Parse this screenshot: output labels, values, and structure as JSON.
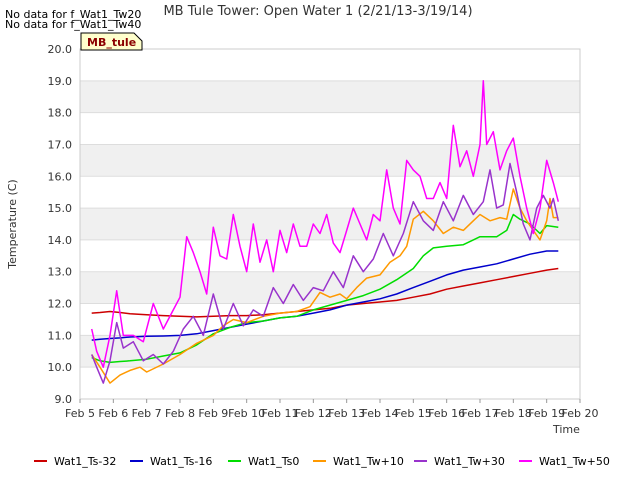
{
  "notes": [
    "No data for f_Wat1_Tw20",
    "No data for f_Wat1_Tw40"
  ],
  "site_tag": "MB_tule",
  "chart_data": {
    "type": "line",
    "title": "MB Tule Tower: Open Water 1 (2/21/13-3/19/14)",
    "xlabel": "Time",
    "ylabel": "Temperature (C)",
    "xlim": [
      5,
      20
    ],
    "ylim": [
      9.0,
      20.0
    ],
    "x_ticks": [
      5,
      6,
      7,
      8,
      9,
      10,
      11,
      12,
      13,
      14,
      15,
      16,
      17,
      18,
      19,
      20
    ],
    "x_tick_labels": [
      "Feb 5",
      "Feb 6",
      "Feb 7",
      "Feb 8",
      "Feb 9",
      "Feb 10",
      "Feb 11",
      "Feb 12",
      "Feb 13",
      "Feb 14",
      "Feb 15",
      "Feb 16",
      "Feb 17",
      "Feb 18",
      "Feb 19",
      "Feb 20"
    ],
    "y_ticks": [
      9.0,
      10.0,
      11.0,
      12.0,
      13.0,
      14.0,
      15.0,
      16.0,
      17.0,
      18.0,
      19.0,
      20.0
    ],
    "y_tick_labels": [
      "9.0",
      "10.0",
      "11.0",
      "12.0",
      "13.0",
      "14.0",
      "15.0",
      "16.0",
      "17.0",
      "18.0",
      "19.0",
      "20.0"
    ],
    "grid": "horizontal bands",
    "legend_position": "bottom",
    "series": [
      {
        "name": "Wat1_Ts-32",
        "color": "#cc0000",
        "x": [
          5.35,
          5.6,
          5.9,
          6.2,
          6.5,
          7.0,
          7.5,
          8.0,
          8.5,
          9.0,
          9.5,
          10.0,
          10.5,
          11.0,
          11.5,
          12.0,
          12.5,
          13.0,
          13.5,
          14.0,
          14.5,
          15.0,
          15.5,
          16.0,
          16.5,
          17.0,
          17.5,
          18.0,
          18.5,
          19.0,
          19.35
        ],
        "y": [
          11.7,
          11.72,
          11.75,
          11.72,
          11.68,
          11.65,
          11.62,
          11.6,
          11.58,
          11.6,
          11.62,
          11.62,
          11.65,
          11.7,
          11.75,
          11.8,
          11.85,
          11.95,
          12.0,
          12.05,
          12.1,
          12.2,
          12.3,
          12.45,
          12.55,
          12.65,
          12.75,
          12.85,
          12.95,
          13.05,
          13.1
        ]
      },
      {
        "name": "Wat1_Ts-16",
        "color": "#0000cc",
        "x": [
          5.35,
          5.6,
          5.9,
          6.2,
          6.5,
          7.0,
          7.5,
          8.0,
          8.5,
          9.0,
          9.5,
          10.0,
          10.5,
          11.0,
          11.5,
          12.0,
          12.5,
          13.0,
          13.5,
          14.0,
          14.5,
          15.0,
          15.5,
          16.0,
          16.5,
          17.0,
          17.5,
          18.0,
          18.5,
          19.0,
          19.35
        ],
        "y": [
          10.85,
          10.88,
          10.9,
          10.92,
          10.95,
          10.97,
          10.98,
          11.0,
          11.05,
          11.15,
          11.25,
          11.35,
          11.45,
          11.55,
          11.6,
          11.7,
          11.8,
          11.95,
          12.05,
          12.15,
          12.3,
          12.5,
          12.7,
          12.9,
          13.05,
          13.15,
          13.25,
          13.4,
          13.55,
          13.65,
          13.65
        ]
      },
      {
        "name": "Wat1_Ts0",
        "color": "#00dd00",
        "x": [
          5.35,
          5.6,
          5.9,
          6.2,
          6.5,
          7.0,
          7.5,
          8.0,
          8.5,
          9.0,
          9.5,
          10.0,
          10.5,
          11.0,
          11.5,
          12.0,
          12.5,
          13.0,
          13.5,
          14.0,
          14.5,
          15.0,
          15.3,
          15.6,
          16.0,
          16.5,
          16.8,
          17.0,
          17.5,
          17.8,
          18.0,
          18.2,
          18.5,
          18.8,
          19.0,
          19.35
        ],
        "y": [
          10.3,
          10.2,
          10.15,
          10.18,
          10.2,
          10.25,
          10.35,
          10.45,
          10.7,
          11.05,
          11.25,
          11.4,
          11.45,
          11.55,
          11.6,
          11.8,
          11.95,
          12.1,
          12.25,
          12.45,
          12.75,
          13.1,
          13.5,
          13.75,
          13.8,
          13.85,
          14.0,
          14.1,
          14.1,
          14.3,
          14.8,
          14.65,
          14.5,
          14.2,
          14.45,
          14.4
        ]
      },
      {
        "name": "Wat1_Tw+10",
        "color": "#ff9900",
        "x": [
          5.35,
          5.6,
          5.9,
          6.2,
          6.5,
          6.8,
          7.0,
          7.5,
          8.0,
          8.5,
          9.0,
          9.3,
          9.6,
          10.0,
          10.5,
          11.0,
          11.5,
          11.9,
          12.2,
          12.5,
          12.8,
          13.0,
          13.3,
          13.6,
          14.0,
          14.3,
          14.6,
          14.8,
          15.0,
          15.3,
          15.6,
          15.9,
          16.2,
          16.5,
          16.8,
          17.0,
          17.3,
          17.6,
          17.8,
          18.0,
          18.2,
          18.4,
          18.6,
          18.8,
          19.0,
          19.1,
          19.2,
          19.35
        ],
        "y": [
          10.4,
          10.0,
          9.5,
          9.75,
          9.9,
          10.0,
          9.85,
          10.1,
          10.4,
          10.75,
          11.0,
          11.3,
          11.5,
          11.4,
          11.6,
          11.7,
          11.75,
          11.9,
          12.35,
          12.2,
          12.3,
          12.15,
          12.5,
          12.8,
          12.9,
          13.3,
          13.5,
          13.8,
          14.65,
          14.9,
          14.6,
          14.2,
          14.4,
          14.3,
          14.6,
          14.8,
          14.6,
          14.7,
          14.65,
          15.6,
          15.0,
          14.6,
          14.3,
          14.0,
          14.6,
          15.3,
          14.7,
          14.7
        ]
      },
      {
        "name": "Wat1_Tw+30",
        "color": "#9933cc",
        "x": [
          5.35,
          5.5,
          5.7,
          5.9,
          6.1,
          6.3,
          6.6,
          6.9,
          7.2,
          7.5,
          7.8,
          8.1,
          8.4,
          8.7,
          9.0,
          9.3,
          9.6,
          9.9,
          10.2,
          10.5,
          10.8,
          11.1,
          11.4,
          11.7,
          12.0,
          12.3,
          12.6,
          12.9,
          13.2,
          13.5,
          13.8,
          14.1,
          14.4,
          14.7,
          15.0,
          15.3,
          15.6,
          15.9,
          16.2,
          16.5,
          16.8,
          17.1,
          17.3,
          17.5,
          17.7,
          17.9,
          18.1,
          18.3,
          18.5,
          18.7,
          18.9,
          19.1,
          19.2,
          19.35
        ],
        "y": [
          10.4,
          10.0,
          9.5,
          10.2,
          11.4,
          10.6,
          10.8,
          10.2,
          10.4,
          10.1,
          10.5,
          11.2,
          11.6,
          11.0,
          12.3,
          11.2,
          12.0,
          11.3,
          11.8,
          11.6,
          12.5,
          12.0,
          12.6,
          12.1,
          12.5,
          12.4,
          13.0,
          12.5,
          13.5,
          13.0,
          13.4,
          14.2,
          13.5,
          14.2,
          15.2,
          14.6,
          14.3,
          15.2,
          14.6,
          15.4,
          14.8,
          15.2,
          16.2,
          15.0,
          15.1,
          16.4,
          15.5,
          14.5,
          14.0,
          15.0,
          15.4,
          15.0,
          15.3,
          14.6
        ]
      },
      {
        "name": "Wat1_Tw+50",
        "color": "#ff00ff",
        "x": [
          5.35,
          5.5,
          5.7,
          5.9,
          6.1,
          6.3,
          6.6,
          6.9,
          7.2,
          7.5,
          7.8,
          8.0,
          8.2,
          8.4,
          8.6,
          8.8,
          9.0,
          9.2,
          9.4,
          9.6,
          9.8,
          10.0,
          10.2,
          10.4,
          10.6,
          10.8,
          11.0,
          11.2,
          11.4,
          11.6,
          11.8,
          12.0,
          12.2,
          12.4,
          12.6,
          12.8,
          13.0,
          13.2,
          13.4,
          13.6,
          13.8,
          14.0,
          14.2,
          14.4,
          14.6,
          14.8,
          15.0,
          15.2,
          15.4,
          15.6,
          15.8,
          16.0,
          16.2,
          16.4,
          16.6,
          16.8,
          17.0,
          17.1,
          17.2,
          17.4,
          17.6,
          17.8,
          18.0,
          18.2,
          18.4,
          18.6,
          18.8,
          19.0,
          19.2,
          19.35
        ],
        "y": [
          11.2,
          10.5,
          10.0,
          11.0,
          12.4,
          11.0,
          11.0,
          10.8,
          12.0,
          11.2,
          11.8,
          12.2,
          14.1,
          13.6,
          13.0,
          12.3,
          14.4,
          13.5,
          13.4,
          14.8,
          13.8,
          13.0,
          14.5,
          13.3,
          14.0,
          13.0,
          14.3,
          13.6,
          14.5,
          13.8,
          13.8,
          14.5,
          14.2,
          14.8,
          13.9,
          13.6,
          14.3,
          15.0,
          14.5,
          14.0,
          14.8,
          14.6,
          16.2,
          15.0,
          14.5,
          16.5,
          16.2,
          16.0,
          15.3,
          15.3,
          15.8,
          15.3,
          17.6,
          16.3,
          16.8,
          16.0,
          17.0,
          19.0,
          17.0,
          17.4,
          16.2,
          16.8,
          17.2,
          16.0,
          15.0,
          14.2,
          15.0,
          16.5,
          15.8,
          15.2
        ]
      }
    ]
  }
}
